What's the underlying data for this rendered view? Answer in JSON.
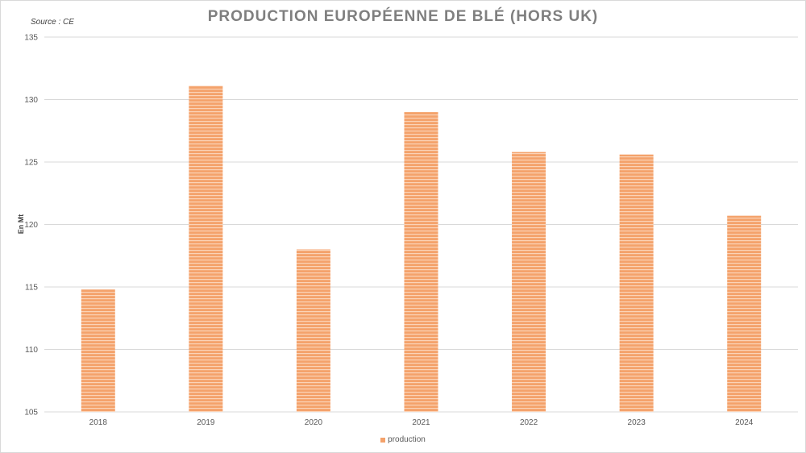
{
  "source": "Source : CE",
  "chart_data": {
    "type": "bar",
    "title": "PRODUCTION EUROPÉENNE DE BLÉ (HORS UK)",
    "ylabel": "En Mt",
    "xlabel": "",
    "categories": [
      "2018",
      "2019",
      "2020",
      "2021",
      "2022",
      "2023",
      "2024"
    ],
    "series": [
      {
        "name": "production",
        "values": [
          114.8,
          131.1,
          118.0,
          129.0,
          125.8,
          125.6,
          120.7
        ]
      }
    ],
    "ylim": [
      105,
      135
    ],
    "yticks": [
      105,
      110,
      115,
      120,
      125,
      130,
      135
    ],
    "grid": true,
    "legend_position": "bottom",
    "colors": {
      "bar": "#f4a26b",
      "bar_stripe": "#fbd3b7",
      "grid": "#d9d9d9",
      "title": "#7f7f7f"
    }
  }
}
